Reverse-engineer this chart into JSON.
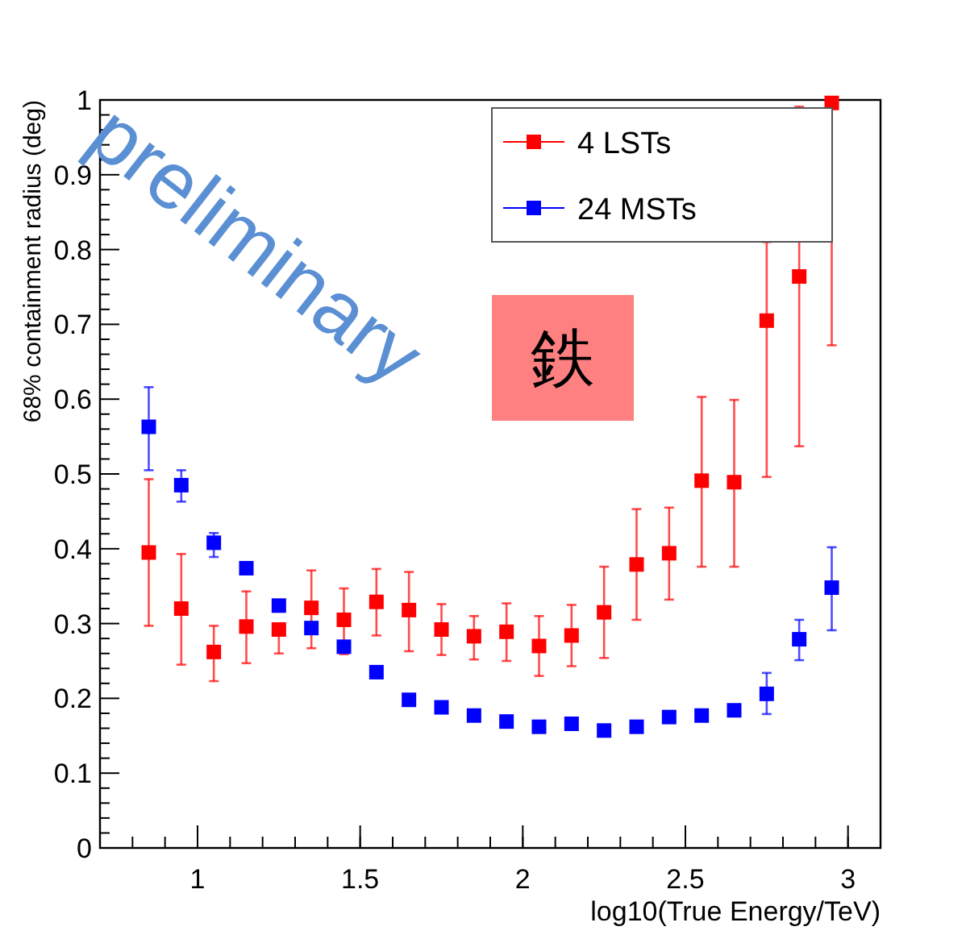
{
  "chart_data": {
    "type": "scatter",
    "xlabel": "log10(True Energy/TeV)",
    "ylabel": "68% containment radius (deg)",
    "x": [
      0.85,
      0.95,
      1.05,
      1.15,
      1.25,
      1.35,
      1.45,
      1.55,
      1.65,
      1.75,
      1.85,
      1.95,
      2.05,
      2.15,
      2.25,
      2.35,
      2.45,
      2.55,
      2.65,
      2.75,
      2.85,
      2.95
    ],
    "series": [
      {
        "name": "4 LSTs",
        "color": "#ff0000",
        "values": [
          0.395,
          0.32,
          0.262,
          0.296,
          0.292,
          0.321,
          0.305,
          0.329,
          0.318,
          0.292,
          0.283,
          0.289,
          0.27,
          0.284,
          0.315,
          0.379,
          0.394,
          0.491,
          0.489,
          0.705,
          0.764,
          0.996
        ],
        "errors": [
          [
            0.297,
            0.493
          ],
          [
            0.245,
            0.393
          ],
          [
            0.223,
            0.297
          ],
          [
            0.247,
            0.343
          ],
          [
            0.26,
            0.292
          ],
          [
            0.267,
            0.371
          ],
          [
            0.259,
            0.347
          ],
          [
            0.284,
            0.373
          ],
          [
            0.263,
            0.369
          ],
          [
            0.258,
            0.326
          ],
          [
            0.252,
            0.31
          ],
          [
            0.25,
            0.327
          ],
          [
            0.23,
            0.31
          ],
          [
            0.243,
            0.325
          ],
          [
            0.254,
            0.376
          ],
          [
            0.305,
            0.453
          ],
          [
            0.332,
            0.455
          ],
          [
            0.376,
            0.603
          ],
          [
            0.376,
            0.599
          ],
          [
            0.496,
            0.81
          ],
          [
            0.537,
            0.991
          ],
          [
            0.672,
            1.0
          ]
        ]
      },
      {
        "name": "24 MSTs",
        "color": "#0000ff",
        "values": [
          0.563,
          0.485,
          0.408,
          0.374,
          0.324,
          0.294,
          0.269,
          0.235,
          0.198,
          0.188,
          0.177,
          0.169,
          0.162,
          0.166,
          0.157,
          0.162,
          0.175,
          0.177,
          0.184,
          0.206,
          0.279,
          0.348
        ],
        "errors": [
          [
            0.505,
            0.616
          ],
          [
            0.463,
            0.505
          ],
          [
            0.389,
            0.421
          ],
          null,
          null,
          null,
          null,
          null,
          null,
          null,
          null,
          null,
          null,
          null,
          null,
          null,
          null,
          null,
          null,
          [
            0.179,
            0.234
          ],
          [
            0.251,
            0.305
          ],
          [
            0.291,
            0.402
          ]
        ]
      }
    ],
    "xlim": [
      0.7,
      3.1
    ],
    "xticks": [
      1,
      1.5,
      2,
      2.5,
      3
    ],
    "ylim": [
      0,
      1
    ],
    "yticks": [
      0,
      0.1,
      0.2,
      0.3,
      0.4,
      0.5,
      0.6,
      0.7,
      0.8,
      0.9,
      1
    ],
    "marker": "square",
    "legend": "top right",
    "grid": false,
    "annotations": [
      "preliminary",
      "鉄"
    ]
  }
}
